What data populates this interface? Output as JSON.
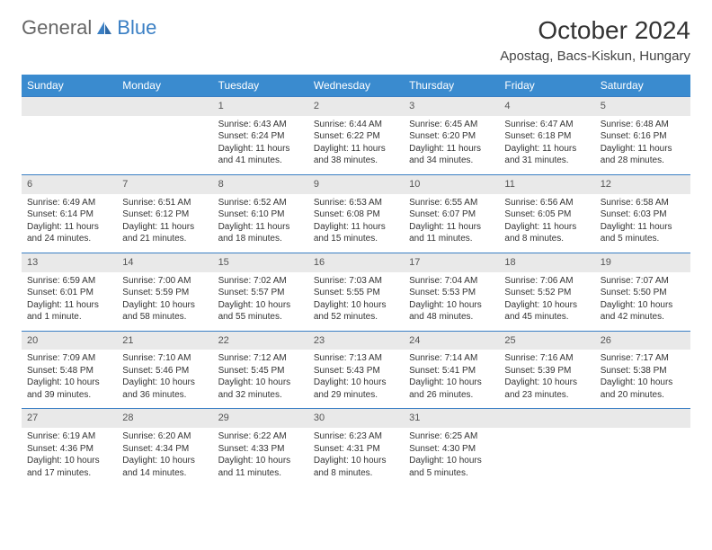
{
  "brand": {
    "word1": "General",
    "word2": "Blue"
  },
  "title": {
    "month": "October 2024",
    "location": "Apostag, Bacs-Kiskun, Hungary"
  },
  "colors": {
    "header_bg": "#3a8bcf",
    "header_text": "#ffffff",
    "daynum_bg": "#e9e9e9",
    "rule": "#3a7fc4",
    "logo_gray": "#666666",
    "logo_blue": "#3a7fc4",
    "body_text": "#333333"
  },
  "weekdays": [
    "Sunday",
    "Monday",
    "Tuesday",
    "Wednesday",
    "Thursday",
    "Friday",
    "Saturday"
  ],
  "weeks": [
    [
      {
        "num": "",
        "sunrise": "",
        "sunset": "",
        "daylight": ""
      },
      {
        "num": "",
        "sunrise": "",
        "sunset": "",
        "daylight": ""
      },
      {
        "num": "1",
        "sunrise": "Sunrise: 6:43 AM",
        "sunset": "Sunset: 6:24 PM",
        "daylight": "Daylight: 11 hours and 41 minutes."
      },
      {
        "num": "2",
        "sunrise": "Sunrise: 6:44 AM",
        "sunset": "Sunset: 6:22 PM",
        "daylight": "Daylight: 11 hours and 38 minutes."
      },
      {
        "num": "3",
        "sunrise": "Sunrise: 6:45 AM",
        "sunset": "Sunset: 6:20 PM",
        "daylight": "Daylight: 11 hours and 34 minutes."
      },
      {
        "num": "4",
        "sunrise": "Sunrise: 6:47 AM",
        "sunset": "Sunset: 6:18 PM",
        "daylight": "Daylight: 11 hours and 31 minutes."
      },
      {
        "num": "5",
        "sunrise": "Sunrise: 6:48 AM",
        "sunset": "Sunset: 6:16 PM",
        "daylight": "Daylight: 11 hours and 28 minutes."
      }
    ],
    [
      {
        "num": "6",
        "sunrise": "Sunrise: 6:49 AM",
        "sunset": "Sunset: 6:14 PM",
        "daylight": "Daylight: 11 hours and 24 minutes."
      },
      {
        "num": "7",
        "sunrise": "Sunrise: 6:51 AM",
        "sunset": "Sunset: 6:12 PM",
        "daylight": "Daylight: 11 hours and 21 minutes."
      },
      {
        "num": "8",
        "sunrise": "Sunrise: 6:52 AM",
        "sunset": "Sunset: 6:10 PM",
        "daylight": "Daylight: 11 hours and 18 minutes."
      },
      {
        "num": "9",
        "sunrise": "Sunrise: 6:53 AM",
        "sunset": "Sunset: 6:08 PM",
        "daylight": "Daylight: 11 hours and 15 minutes."
      },
      {
        "num": "10",
        "sunrise": "Sunrise: 6:55 AM",
        "sunset": "Sunset: 6:07 PM",
        "daylight": "Daylight: 11 hours and 11 minutes."
      },
      {
        "num": "11",
        "sunrise": "Sunrise: 6:56 AM",
        "sunset": "Sunset: 6:05 PM",
        "daylight": "Daylight: 11 hours and 8 minutes."
      },
      {
        "num": "12",
        "sunrise": "Sunrise: 6:58 AM",
        "sunset": "Sunset: 6:03 PM",
        "daylight": "Daylight: 11 hours and 5 minutes."
      }
    ],
    [
      {
        "num": "13",
        "sunrise": "Sunrise: 6:59 AM",
        "sunset": "Sunset: 6:01 PM",
        "daylight": "Daylight: 11 hours and 1 minute."
      },
      {
        "num": "14",
        "sunrise": "Sunrise: 7:00 AM",
        "sunset": "Sunset: 5:59 PM",
        "daylight": "Daylight: 10 hours and 58 minutes."
      },
      {
        "num": "15",
        "sunrise": "Sunrise: 7:02 AM",
        "sunset": "Sunset: 5:57 PM",
        "daylight": "Daylight: 10 hours and 55 minutes."
      },
      {
        "num": "16",
        "sunrise": "Sunrise: 7:03 AM",
        "sunset": "Sunset: 5:55 PM",
        "daylight": "Daylight: 10 hours and 52 minutes."
      },
      {
        "num": "17",
        "sunrise": "Sunrise: 7:04 AM",
        "sunset": "Sunset: 5:53 PM",
        "daylight": "Daylight: 10 hours and 48 minutes."
      },
      {
        "num": "18",
        "sunrise": "Sunrise: 7:06 AM",
        "sunset": "Sunset: 5:52 PM",
        "daylight": "Daylight: 10 hours and 45 minutes."
      },
      {
        "num": "19",
        "sunrise": "Sunrise: 7:07 AM",
        "sunset": "Sunset: 5:50 PM",
        "daylight": "Daylight: 10 hours and 42 minutes."
      }
    ],
    [
      {
        "num": "20",
        "sunrise": "Sunrise: 7:09 AM",
        "sunset": "Sunset: 5:48 PM",
        "daylight": "Daylight: 10 hours and 39 minutes."
      },
      {
        "num": "21",
        "sunrise": "Sunrise: 7:10 AM",
        "sunset": "Sunset: 5:46 PM",
        "daylight": "Daylight: 10 hours and 36 minutes."
      },
      {
        "num": "22",
        "sunrise": "Sunrise: 7:12 AM",
        "sunset": "Sunset: 5:45 PM",
        "daylight": "Daylight: 10 hours and 32 minutes."
      },
      {
        "num": "23",
        "sunrise": "Sunrise: 7:13 AM",
        "sunset": "Sunset: 5:43 PM",
        "daylight": "Daylight: 10 hours and 29 minutes."
      },
      {
        "num": "24",
        "sunrise": "Sunrise: 7:14 AM",
        "sunset": "Sunset: 5:41 PM",
        "daylight": "Daylight: 10 hours and 26 minutes."
      },
      {
        "num": "25",
        "sunrise": "Sunrise: 7:16 AM",
        "sunset": "Sunset: 5:39 PM",
        "daylight": "Daylight: 10 hours and 23 minutes."
      },
      {
        "num": "26",
        "sunrise": "Sunrise: 7:17 AM",
        "sunset": "Sunset: 5:38 PM",
        "daylight": "Daylight: 10 hours and 20 minutes."
      }
    ],
    [
      {
        "num": "27",
        "sunrise": "Sunrise: 6:19 AM",
        "sunset": "Sunset: 4:36 PM",
        "daylight": "Daylight: 10 hours and 17 minutes."
      },
      {
        "num": "28",
        "sunrise": "Sunrise: 6:20 AM",
        "sunset": "Sunset: 4:34 PM",
        "daylight": "Daylight: 10 hours and 14 minutes."
      },
      {
        "num": "29",
        "sunrise": "Sunrise: 6:22 AM",
        "sunset": "Sunset: 4:33 PM",
        "daylight": "Daylight: 10 hours and 11 minutes."
      },
      {
        "num": "30",
        "sunrise": "Sunrise: 6:23 AM",
        "sunset": "Sunset: 4:31 PM",
        "daylight": "Daylight: 10 hours and 8 minutes."
      },
      {
        "num": "31",
        "sunrise": "Sunrise: 6:25 AM",
        "sunset": "Sunset: 4:30 PM",
        "daylight": "Daylight: 10 hours and 5 minutes."
      },
      {
        "num": "",
        "sunrise": "",
        "sunset": "",
        "daylight": ""
      },
      {
        "num": "",
        "sunrise": "",
        "sunset": "",
        "daylight": ""
      }
    ]
  ]
}
